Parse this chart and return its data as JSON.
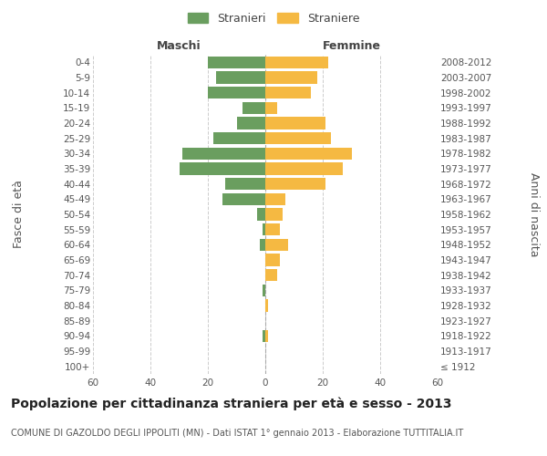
{
  "age_groups": [
    "100+",
    "95-99",
    "90-94",
    "85-89",
    "80-84",
    "75-79",
    "70-74",
    "65-69",
    "60-64",
    "55-59",
    "50-54",
    "45-49",
    "40-44",
    "35-39",
    "30-34",
    "25-29",
    "20-24",
    "15-19",
    "10-14",
    "5-9",
    "0-4"
  ],
  "birth_years": [
    "≤ 1912",
    "1913-1917",
    "1918-1922",
    "1923-1927",
    "1928-1932",
    "1933-1937",
    "1938-1942",
    "1943-1947",
    "1948-1952",
    "1953-1957",
    "1958-1962",
    "1963-1967",
    "1968-1972",
    "1973-1977",
    "1978-1982",
    "1983-1987",
    "1988-1992",
    "1993-1997",
    "1998-2002",
    "2003-2007",
    "2008-2012"
  ],
  "males": [
    0,
    0,
    1,
    0,
    0,
    1,
    0,
    0,
    2,
    1,
    3,
    15,
    14,
    30,
    29,
    18,
    10,
    8,
    20,
    17,
    20
  ],
  "females": [
    0,
    0,
    1,
    0,
    1,
    0,
    4,
    5,
    8,
    5,
    6,
    7,
    21,
    27,
    30,
    23,
    21,
    4,
    16,
    18,
    22
  ],
  "male_color": "#6a9e5f",
  "female_color": "#f5b942",
  "bar_height": 0.8,
  "xlim": 60,
  "title": "Popolazione per cittadinanza straniera per età e sesso - 2013",
  "subtitle": "COMUNE DI GAZOLDO DEGLI IPPOLITI (MN) - Dati ISTAT 1° gennaio 2013 - Elaborazione TUTTITALIA.IT",
  "ylabel_left": "Fasce di età",
  "ylabel_right": "Anni di nascita",
  "xlabel_left": "Maschi",
  "xlabel_right": "Femmine",
  "legend_male": "Stranieri",
  "legend_female": "Straniere",
  "background_color": "#ffffff",
  "grid_color": "#cccccc",
  "title_fontsize": 10,
  "subtitle_fontsize": 7,
  "tick_fontsize": 7.5,
  "label_fontsize": 9
}
